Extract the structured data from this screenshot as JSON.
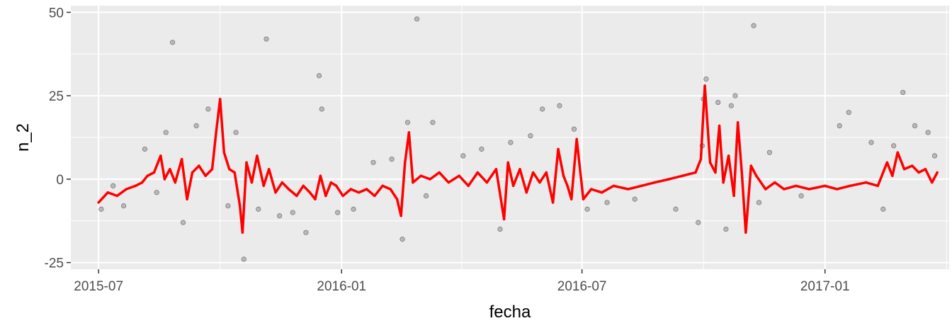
{
  "chart_data": {
    "type": "line",
    "xlabel": "fecha",
    "ylabel": "n_2",
    "xlim": [
      "2015-06-10",
      "2017-04-05"
    ],
    "ylim": [
      -27,
      52
    ],
    "y_ticks": [
      -25,
      0,
      25,
      50
    ],
    "y_tick_labels": [
      "-25",
      "0",
      "25",
      "50"
    ],
    "x_ticks": [
      "2015-07-01",
      "2016-01-01",
      "2016-07-01",
      "2017-01-01"
    ],
    "x_tick_labels": [
      "2015-07",
      "2016-01",
      "2016-07",
      "2017-01"
    ],
    "grid": true,
    "colors": {
      "panel_background": "#ebebeb",
      "grid": "#ffffff",
      "points_fill": "#b0b0b0",
      "points_stroke": "#7a7a7a",
      "line": "#ff0000"
    },
    "series": [
      {
        "type": "line",
        "points": [
          [
            "2015-07-01",
            -7
          ],
          [
            "2015-07-08",
            -4
          ],
          [
            "2015-07-15",
            -5
          ],
          [
            "2015-07-22",
            -3
          ],
          [
            "2015-07-29",
            -2
          ],
          [
            "2015-08-03",
            -1
          ],
          [
            "2015-08-07",
            1
          ],
          [
            "2015-08-12",
            2
          ],
          [
            "2015-08-17",
            7
          ],
          [
            "2015-08-20",
            0
          ],
          [
            "2015-08-24",
            3
          ],
          [
            "2015-08-28",
            -1
          ],
          [
            "2015-09-02",
            6
          ],
          [
            "2015-09-06",
            -6
          ],
          [
            "2015-09-10",
            2
          ],
          [
            "2015-09-15",
            4
          ],
          [
            "2015-09-20",
            1
          ],
          [
            "2015-09-25",
            3
          ],
          [
            "2015-09-28",
            14
          ],
          [
            "2015-10-01",
            24
          ],
          [
            "2015-10-04",
            8
          ],
          [
            "2015-10-08",
            3
          ],
          [
            "2015-10-12",
            2
          ],
          [
            "2015-10-16",
            -8
          ],
          [
            "2015-10-18",
            -16
          ],
          [
            "2015-10-21",
            5
          ],
          [
            "2015-10-25",
            -1
          ],
          [
            "2015-10-29",
            7
          ],
          [
            "2015-11-03",
            -2
          ],
          [
            "2015-11-07",
            3
          ],
          [
            "2015-11-12",
            -4
          ],
          [
            "2015-11-17",
            -1
          ],
          [
            "2015-11-22",
            -3
          ],
          [
            "2015-11-28",
            -5
          ],
          [
            "2015-12-03",
            -2
          ],
          [
            "2015-12-08",
            -4
          ],
          [
            "2015-12-12",
            -6
          ],
          [
            "2015-12-16",
            1
          ],
          [
            "2015-12-20",
            -5
          ],
          [
            "2015-12-24",
            -1
          ],
          [
            "2015-12-28",
            -2
          ],
          [
            "2016-01-02",
            -5
          ],
          [
            "2016-01-08",
            -3
          ],
          [
            "2016-01-14",
            -4
          ],
          [
            "2016-01-20",
            -3
          ],
          [
            "2016-01-26",
            -5
          ],
          [
            "2016-02-01",
            -2
          ],
          [
            "2016-02-07",
            -3
          ],
          [
            "2016-02-12",
            -6
          ],
          [
            "2016-02-15",
            -11
          ],
          [
            "2016-02-18",
            5
          ],
          [
            "2016-02-21",
            14
          ],
          [
            "2016-02-24",
            -1
          ],
          [
            "2016-03-01",
            1
          ],
          [
            "2016-03-08",
            0
          ],
          [
            "2016-03-15",
            2
          ],
          [
            "2016-03-22",
            -1
          ],
          [
            "2016-03-30",
            1
          ],
          [
            "2016-04-06",
            -2
          ],
          [
            "2016-04-13",
            2
          ],
          [
            "2016-04-20",
            -1
          ],
          [
            "2016-04-27",
            3
          ],
          [
            "2016-05-03",
            -12
          ],
          [
            "2016-05-06",
            5
          ],
          [
            "2016-05-10",
            -2
          ],
          [
            "2016-05-15",
            3
          ],
          [
            "2016-05-20",
            -4
          ],
          [
            "2016-05-25",
            2
          ],
          [
            "2016-05-30",
            -1
          ],
          [
            "2016-06-04",
            2
          ],
          [
            "2016-06-09",
            -7
          ],
          [
            "2016-06-13",
            9
          ],
          [
            "2016-06-17",
            1
          ],
          [
            "2016-06-20",
            -2
          ],
          [
            "2016-06-23",
            -6
          ],
          [
            "2016-06-27",
            12
          ],
          [
            "2016-07-02",
            -6
          ],
          [
            "2016-07-08",
            -3
          ],
          [
            "2016-07-16",
            -4
          ],
          [
            "2016-07-25",
            -2
          ],
          [
            "2016-08-05",
            -3
          ],
          [
            "2016-08-15",
            -2
          ],
          [
            "2016-08-25",
            -1
          ],
          [
            "2016-09-05",
            0
          ],
          [
            "2016-09-15",
            1
          ],
          [
            "2016-09-25",
            2
          ],
          [
            "2016-09-29",
            6
          ],
          [
            "2016-10-02",
            28
          ],
          [
            "2016-10-06",
            5
          ],
          [
            "2016-10-10",
            2
          ],
          [
            "2016-10-13",
            16
          ],
          [
            "2016-10-16",
            -1
          ],
          [
            "2016-10-20",
            7
          ],
          [
            "2016-10-24",
            -5
          ],
          [
            "2016-10-27",
            17
          ],
          [
            "2016-10-30",
            2
          ],
          [
            "2016-11-02",
            -16
          ],
          [
            "2016-11-06",
            4
          ],
          [
            "2016-11-10",
            1
          ],
          [
            "2016-11-17",
            -3
          ],
          [
            "2016-11-24",
            -1
          ],
          [
            "2016-12-01",
            -3
          ],
          [
            "2016-12-10",
            -2
          ],
          [
            "2016-12-20",
            -3
          ],
          [
            "2017-01-01",
            -2
          ],
          [
            "2017-01-10",
            -3
          ],
          [
            "2017-01-20",
            -2
          ],
          [
            "2017-02-01",
            -1
          ],
          [
            "2017-02-10",
            -2
          ],
          [
            "2017-02-17",
            5
          ],
          [
            "2017-02-21",
            1
          ],
          [
            "2017-02-25",
            8
          ],
          [
            "2017-03-02",
            3
          ],
          [
            "2017-03-08",
            4
          ],
          [
            "2017-03-13",
            2
          ],
          [
            "2017-03-18",
            3
          ],
          [
            "2017-03-23",
            -1
          ],
          [
            "2017-03-27",
            2
          ]
        ]
      },
      {
        "type": "scatter",
        "points": [
          [
            "2015-07-03",
            -9
          ],
          [
            "2015-07-12",
            -2
          ],
          [
            "2015-07-20",
            -8
          ],
          [
            "2015-08-05",
            9
          ],
          [
            "2015-08-14",
            -4
          ],
          [
            "2015-08-21",
            14
          ],
          [
            "2015-08-26",
            41
          ],
          [
            "2015-09-03",
            -13
          ],
          [
            "2015-09-13",
            16
          ],
          [
            "2015-09-22",
            21
          ],
          [
            "2015-10-07",
            -8
          ],
          [
            "2015-10-13",
            14
          ],
          [
            "2015-10-19",
            -24
          ],
          [
            "2015-10-30",
            -9
          ],
          [
            "2015-11-05",
            42
          ],
          [
            "2015-11-15",
            -11
          ],
          [
            "2015-11-25",
            -10
          ],
          [
            "2015-12-05",
            -16
          ],
          [
            "2015-12-15",
            31
          ],
          [
            "2015-12-17",
            21
          ],
          [
            "2015-12-29",
            -10
          ],
          [
            "2016-01-10",
            -9
          ],
          [
            "2016-01-25",
            5
          ],
          [
            "2016-02-08",
            6
          ],
          [
            "2016-02-16",
            -18
          ],
          [
            "2016-02-20",
            17
          ],
          [
            "2016-02-27",
            48
          ],
          [
            "2016-03-05",
            -5
          ],
          [
            "2016-03-10",
            17
          ],
          [
            "2016-04-02",
            7
          ],
          [
            "2016-04-16",
            9
          ],
          [
            "2016-04-30",
            -15
          ],
          [
            "2016-05-08",
            11
          ],
          [
            "2016-05-23",
            13
          ],
          [
            "2016-06-01",
            21
          ],
          [
            "2016-06-14",
            22
          ],
          [
            "2016-06-25",
            15
          ],
          [
            "2016-07-05",
            -9
          ],
          [
            "2016-07-20",
            -7
          ],
          [
            "2016-08-10",
            -6
          ],
          [
            "2016-09-10",
            -9
          ],
          [
            "2016-09-27",
            -13
          ],
          [
            "2016-09-30",
            10
          ],
          [
            "2016-10-01",
            24
          ],
          [
            "2016-10-03",
            30
          ],
          [
            "2016-10-12",
            23
          ],
          [
            "2016-10-18",
            -15
          ],
          [
            "2016-10-22",
            22
          ],
          [
            "2016-10-25",
            25
          ],
          [
            "2016-11-08",
            46
          ],
          [
            "2016-11-12",
            -7
          ],
          [
            "2016-11-20",
            8
          ],
          [
            "2016-12-14",
            -5
          ],
          [
            "2017-01-12",
            16
          ],
          [
            "2017-01-19",
            20
          ],
          [
            "2017-02-05",
            11
          ],
          [
            "2017-02-14",
            -9
          ],
          [
            "2017-02-22",
            10
          ],
          [
            "2017-03-01",
            26
          ],
          [
            "2017-03-10",
            16
          ],
          [
            "2017-03-20",
            14
          ],
          [
            "2017-03-25",
            7
          ]
        ]
      }
    ]
  }
}
